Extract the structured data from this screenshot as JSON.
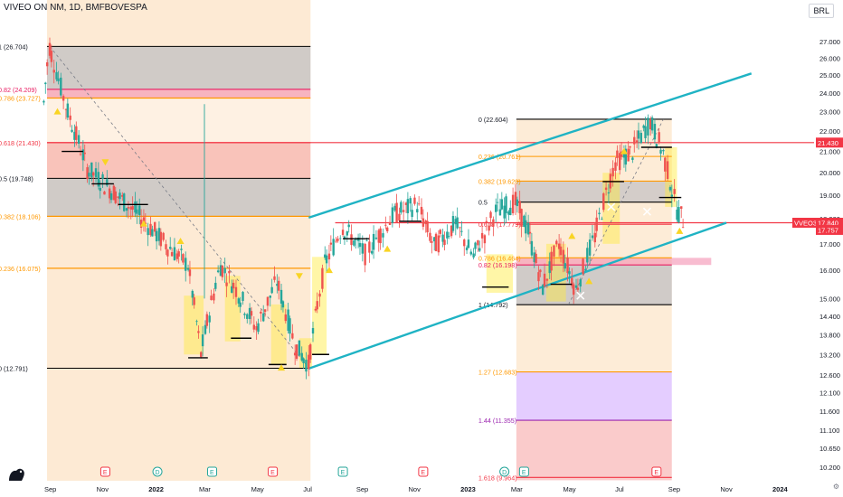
{
  "header": {
    "title": "VIVEO ON NM, 1D, BMFBOVESPA",
    "currency": "BRL"
  },
  "colors": {
    "up": "#26a69a",
    "down": "#ef5350",
    "channel": "#1fb3c4",
    "fib_black": "#000000",
    "fib_red": "#f23645",
    "fib_orange": "#ff9800",
    "fib_pink": "#e91e63",
    "fib_purple": "#9c27b0",
    "fill_gray": "#b2b5be",
    "fill_red": "#f7a8a8",
    "fill_orange": "#fbd9b0",
    "fill_pink": "#f48fb1",
    "fill_purple": "#d9b8ff",
    "yellow": "#ffeb3b",
    "marker_yellow": "#f9d423"
  },
  "chart_data": {
    "type": "candlestick",
    "y_axis": {
      "scale": "log",
      "range": [
        9.9,
        28.0
      ],
      "ticks": [
        "27.000",
        "26.000",
        "25.000",
        "24.000",
        "23.000",
        "22.000",
        "21.000",
        "20.000",
        "19.000",
        "18.000",
        "17.000",
        "16.000",
        "15.000",
        "14.400",
        "13.800",
        "13.200",
        "12.600",
        "12.100",
        "11.600",
        "11.100",
        "10.650",
        "10.200"
      ]
    },
    "x_axis": {
      "labels": [
        "Sep",
        "Nov",
        "2022",
        "Mar",
        "May",
        "Jul",
        "Sep",
        "Nov",
        "2023",
        "Mar",
        "May",
        "Jul",
        "Sep",
        "Nov",
        "2024"
      ]
    },
    "price_badges": [
      {
        "label": "21.430",
        "value": 21.43,
        "color": "#f23645"
      },
      {
        "label": "VVEO3",
        "value": 17.84,
        "color": "#f23645"
      },
      {
        "label": "17.840",
        "value": 17.84,
        "color": "#f23645"
      },
      {
        "label": "17.757",
        "value": 17.757,
        "color": "#f23645"
      }
    ],
    "fib_1": {
      "levels": [
        {
          "label": "1 (26.704)",
          "value": 26.704,
          "color": "#000000"
        },
        {
          "label": "0.82 (24.209)",
          "value": 24.209,
          "color": "#e91e63"
        },
        {
          "label": "0.786 (23.727)",
          "value": 23.727,
          "color": "#ff9800"
        },
        {
          "label": "0.618 (21.430)",
          "value": 21.43,
          "color": "#f23645"
        },
        {
          "label": "0.5 (19.748)",
          "value": 19.748,
          "color": "#000000"
        },
        {
          "label": "0.382 (18.106)",
          "value": 18.106,
          "color": "#ff9800"
        },
        {
          "label": "0.236 (16.075)",
          "value": 16.075,
          "color": "#ff9800"
        },
        {
          "label": "0 (12.791)",
          "value": 12.791,
          "color": "#000000"
        }
      ]
    },
    "fib_2": {
      "levels": [
        {
          "label": "0 (22.604)",
          "value": 22.604,
          "color": "#000000"
        },
        {
          "label": "0.236 (20.761)",
          "value": 20.761,
          "color": "#ff9800"
        },
        {
          "label": "0.382 (19.620)",
          "value": 19.62,
          "color": "#ff9800"
        },
        {
          "label": "0.5",
          "value": 18.7,
          "color": "#000000"
        },
        {
          "label": "0.618 (17.779)",
          "value": 17.779,
          "color": "#f23645"
        },
        {
          "label": "0.786 (16.464)",
          "value": 16.464,
          "color": "#ff9800"
        },
        {
          "label": "0.82 (16.198)",
          "value": 16.198,
          "color": "#e91e63"
        },
        {
          "label": "1 (14.792)",
          "value": 14.792,
          "color": "#000000"
        },
        {
          "label": "1.27 (12.683)",
          "value": 12.683,
          "color": "#ff9800"
        },
        {
          "label": "1.44 (11.355)",
          "value": 11.355,
          "color": "#9c27b0"
        },
        {
          "label": "1.618 (9.964)",
          "value": 9.964,
          "color": "#f23645"
        }
      ]
    },
    "channel": {
      "upper": [
        {
          "date": "2022-07",
          "value": 18.05
        },
        {
          "date": "2023-12",
          "value": 25.1
        }
      ],
      "lower": [
        {
          "date": "2022-07",
          "value": 12.78
        },
        {
          "date": "2023-10",
          "value": 17.84
        }
      ]
    },
    "events": {
      "earnings": [
        "E",
        "E",
        "E",
        "E",
        "E",
        "E",
        "E"
      ],
      "dividends": [
        "D",
        "D"
      ]
    },
    "price_path": [
      {
        "date": "2021-08-25",
        "value": 23.5
      },
      {
        "date": "2021-09-01",
        "value": 26.7
      },
      {
        "date": "2021-09-20",
        "value": 23.3
      },
      {
        "date": "2021-10-15",
        "value": 20.2
      },
      {
        "date": "2021-11-10",
        "value": 19.3
      },
      {
        "date": "2021-12-10",
        "value": 18.3
      },
      {
        "date": "2022-01-15",
        "value": 17.0
      },
      {
        "date": "2022-02-10",
        "value": 16.2
      },
      {
        "date": "2022-02-25",
        "value": 13.2
      },
      {
        "date": "2022-03-20",
        "value": 16.2
      },
      {
        "date": "2022-04-10",
        "value": 15.2
      },
      {
        "date": "2022-05-01",
        "value": 14.0
      },
      {
        "date": "2022-05-25",
        "value": 15.6
      },
      {
        "date": "2022-06-15",
        "value": 13.5
      },
      {
        "date": "2022-07-01",
        "value": 12.9
      },
      {
        "date": "2022-07-20",
        "value": 16.2
      },
      {
        "date": "2022-08-10",
        "value": 17.7
      },
      {
        "date": "2022-09-05",
        "value": 16.6
      },
      {
        "date": "2022-10-10",
        "value": 18.2
      },
      {
        "date": "2022-11-05",
        "value": 18.6
      },
      {
        "date": "2022-11-25",
        "value": 16.9
      },
      {
        "date": "2022-12-20",
        "value": 17.8
      },
      {
        "date": "2023-01-10",
        "value": 16.5
      },
      {
        "date": "2023-02-05",
        "value": 18.3
      },
      {
        "date": "2023-02-28",
        "value": 18.7
      },
      {
        "date": "2023-03-15",
        "value": 17.5
      },
      {
        "date": "2023-04-01",
        "value": 15.4
      },
      {
        "date": "2023-04-20",
        "value": 17.0
      },
      {
        "date": "2023-05-10",
        "value": 15.3
      },
      {
        "date": "2023-06-01",
        "value": 17.3
      },
      {
        "date": "2023-06-25",
        "value": 20.5
      },
      {
        "date": "2023-07-15",
        "value": 21.0
      },
      {
        "date": "2023-08-05",
        "value": 22.5
      },
      {
        "date": "2023-08-20",
        "value": 20.9
      },
      {
        "date": "2023-09-05",
        "value": 18.4
      },
      {
        "date": "2023-09-15",
        "value": 17.8
      }
    ]
  }
}
